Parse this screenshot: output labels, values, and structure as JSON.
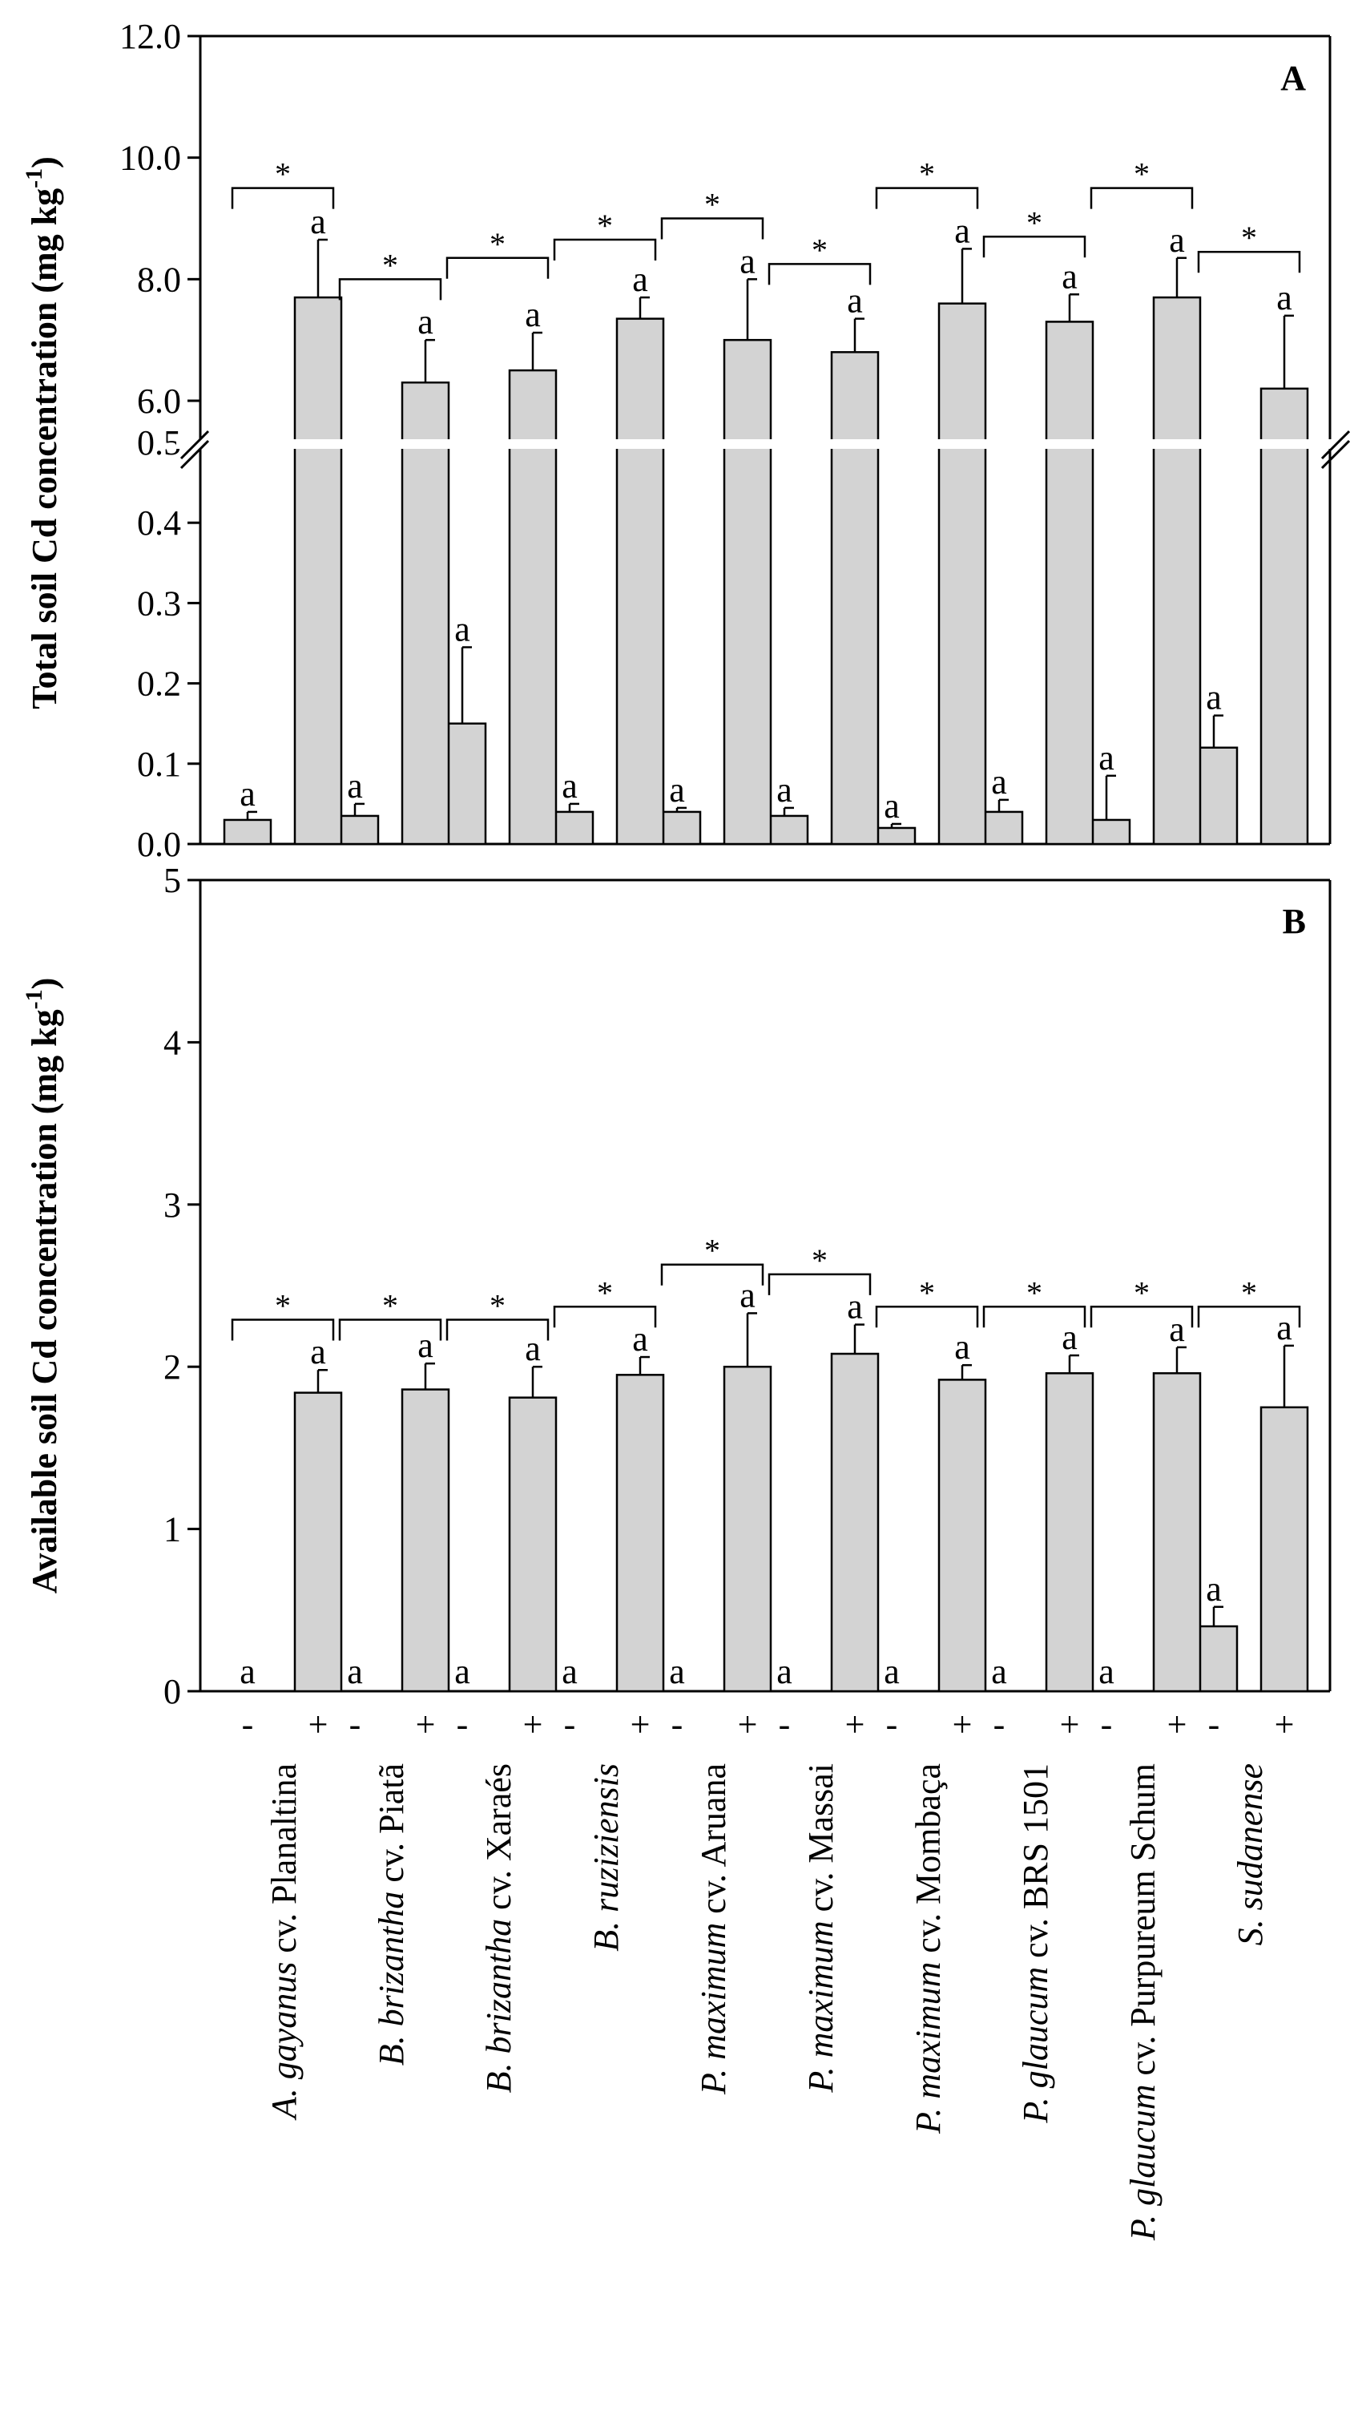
{
  "chart_data": [
    {
      "type": "bar",
      "panel": "A",
      "ylabel": "Total soil Cd concentration (mg kg",
      "ylabel_sup": "-1",
      "ylabel_end": ")",
      "broken_axis": true,
      "lower_range": [
        0,
        0.5
      ],
      "upper_range": [
        6.0,
        12.0
      ],
      "lower_ticks": [
        "0.0",
        "0.1",
        "0.2",
        "0.3",
        "0.4",
        "0.5"
      ],
      "upper_ticks": [
        "6.0",
        "8.0",
        "10.0",
        "12.0"
      ],
      "categories": [
        "A. gayanus cv. Planaltina",
        "B. brizantha cv. Piatã",
        "B. brizantha cv. Xaraés",
        "B. ruziziensis",
        "P. maximum cv. Aruana",
        "P. maximum cv. Massai",
        "P. maximum cv. Mombaça",
        "P. glaucum cv. BRS 1501",
        "P. glaucum cv. Purpureum Schum",
        "S. sudanense"
      ],
      "series": [
        {
          "name": "-",
          "values": [
            0.03,
            0.035,
            0.15,
            0.04,
            0.04,
            0.035,
            0.02,
            0.04,
            0.03,
            0.12
          ],
          "errors": [
            0.01,
            0.015,
            0.095,
            0.01,
            0.005,
            0.01,
            0.005,
            0.015,
            0.055,
            0.04
          ],
          "sig": [
            "a",
            "a",
            "a",
            "a",
            "a",
            "a",
            "a",
            "a",
            "a",
            "a"
          ]
        },
        {
          "name": "+",
          "values": [
            7.7,
            6.3,
            6.5,
            7.35,
            7.0,
            6.8,
            7.6,
            7.3,
            7.7,
            6.2
          ],
          "errors": [
            0.95,
            0.7,
            0.62,
            0.35,
            1.0,
            0.55,
            0.9,
            0.45,
            0.65,
            1.2
          ],
          "sig": [
            "a",
            "a",
            "a",
            "a",
            "a",
            "a",
            "a",
            "a",
            "a",
            "a"
          ]
        }
      ],
      "bracket_marks": [
        "*",
        "*",
        "*",
        "*",
        "*",
        "*",
        "*",
        "*",
        "*",
        "*"
      ],
      "bracket_heights": [
        9.5,
        8.0,
        8.35,
        8.65,
        9.0,
        8.25,
        9.5,
        8.7,
        9.5,
        8.45
      ]
    },
    {
      "type": "bar",
      "panel": "B",
      "ylabel": "Available soil Cd concentration (mg kg",
      "ylabel_sup": "-1",
      "ylabel_end": ")",
      "ylim": [
        0,
        5
      ],
      "yticks": [
        "0",
        "1",
        "2",
        "3",
        "4",
        "5"
      ],
      "categories": [
        "A. gayanus cv. Planaltina",
        "B. brizantha cv. Piatã",
        "B. brizantha cv. Xaraés",
        "B. ruziziensis",
        "P. maximum cv. Aruana",
        "P. maximum cv. Massai",
        "P. maximum cv. Mombaça",
        "P. glaucum cv. BRS 1501",
        "P. glaucum cv. Purpureum Schum",
        "S. sudanense"
      ],
      "series": [
        {
          "name": "-",
          "values": [
            0,
            0,
            0,
            0,
            0,
            0,
            0,
            0,
            0,
            0.4
          ],
          "errors": [
            0,
            0,
            0,
            0,
            0,
            0,
            0,
            0,
            0,
            0.12
          ],
          "sig": [
            "a",
            "a",
            "a",
            "a",
            "a",
            "a",
            "a",
            "a",
            "a",
            "a"
          ]
        },
        {
          "name": "+",
          "values": [
            1.84,
            1.86,
            1.81,
            1.95,
            2.0,
            2.08,
            1.92,
            1.96,
            1.96,
            1.75
          ],
          "errors": [
            0.14,
            0.16,
            0.19,
            0.11,
            0.33,
            0.18,
            0.09,
            0.11,
            0.16,
            0.38
          ],
          "sig": [
            "a",
            "a",
            "a",
            "a",
            "a",
            "a",
            "a",
            "a",
            "a",
            "a"
          ]
        }
      ],
      "bracket_marks": [
        "*",
        "*",
        "*",
        "*",
        "*",
        "*",
        "*",
        "*",
        "*",
        "*"
      ],
      "bracket_heights": [
        2.29,
        2.29,
        2.29,
        2.37,
        2.63,
        2.57,
        2.37,
        2.37,
        2.37,
        2.37
      ]
    }
  ],
  "treatment_signs": {
    "minus": "-",
    "plus": "+"
  },
  "category_labels": [
    {
      "italic": "A. gayanus",
      "normal": " cv. Planaltina"
    },
    {
      "italic": "B. brizantha",
      "normal": " cv. Piatã"
    },
    {
      "italic": "B. brizantha",
      "normal": " cv. Xaraés"
    },
    {
      "italic": "B. ruziziensis",
      "normal": ""
    },
    {
      "italic": "P. maximum",
      "normal": " cv. Aruana"
    },
    {
      "italic": "P. maximum",
      "normal": " cv. Massai"
    },
    {
      "italic": "P. maximum",
      "normal": " cv. Mombaça"
    },
    {
      "italic": "P. glaucum",
      "normal": " cv. BRS 1501"
    },
    {
      "italic": "P. glaucum",
      "normal": " cv. Purpureum Schum"
    },
    {
      "italic": "S. sudanense",
      "normal": ""
    }
  ]
}
